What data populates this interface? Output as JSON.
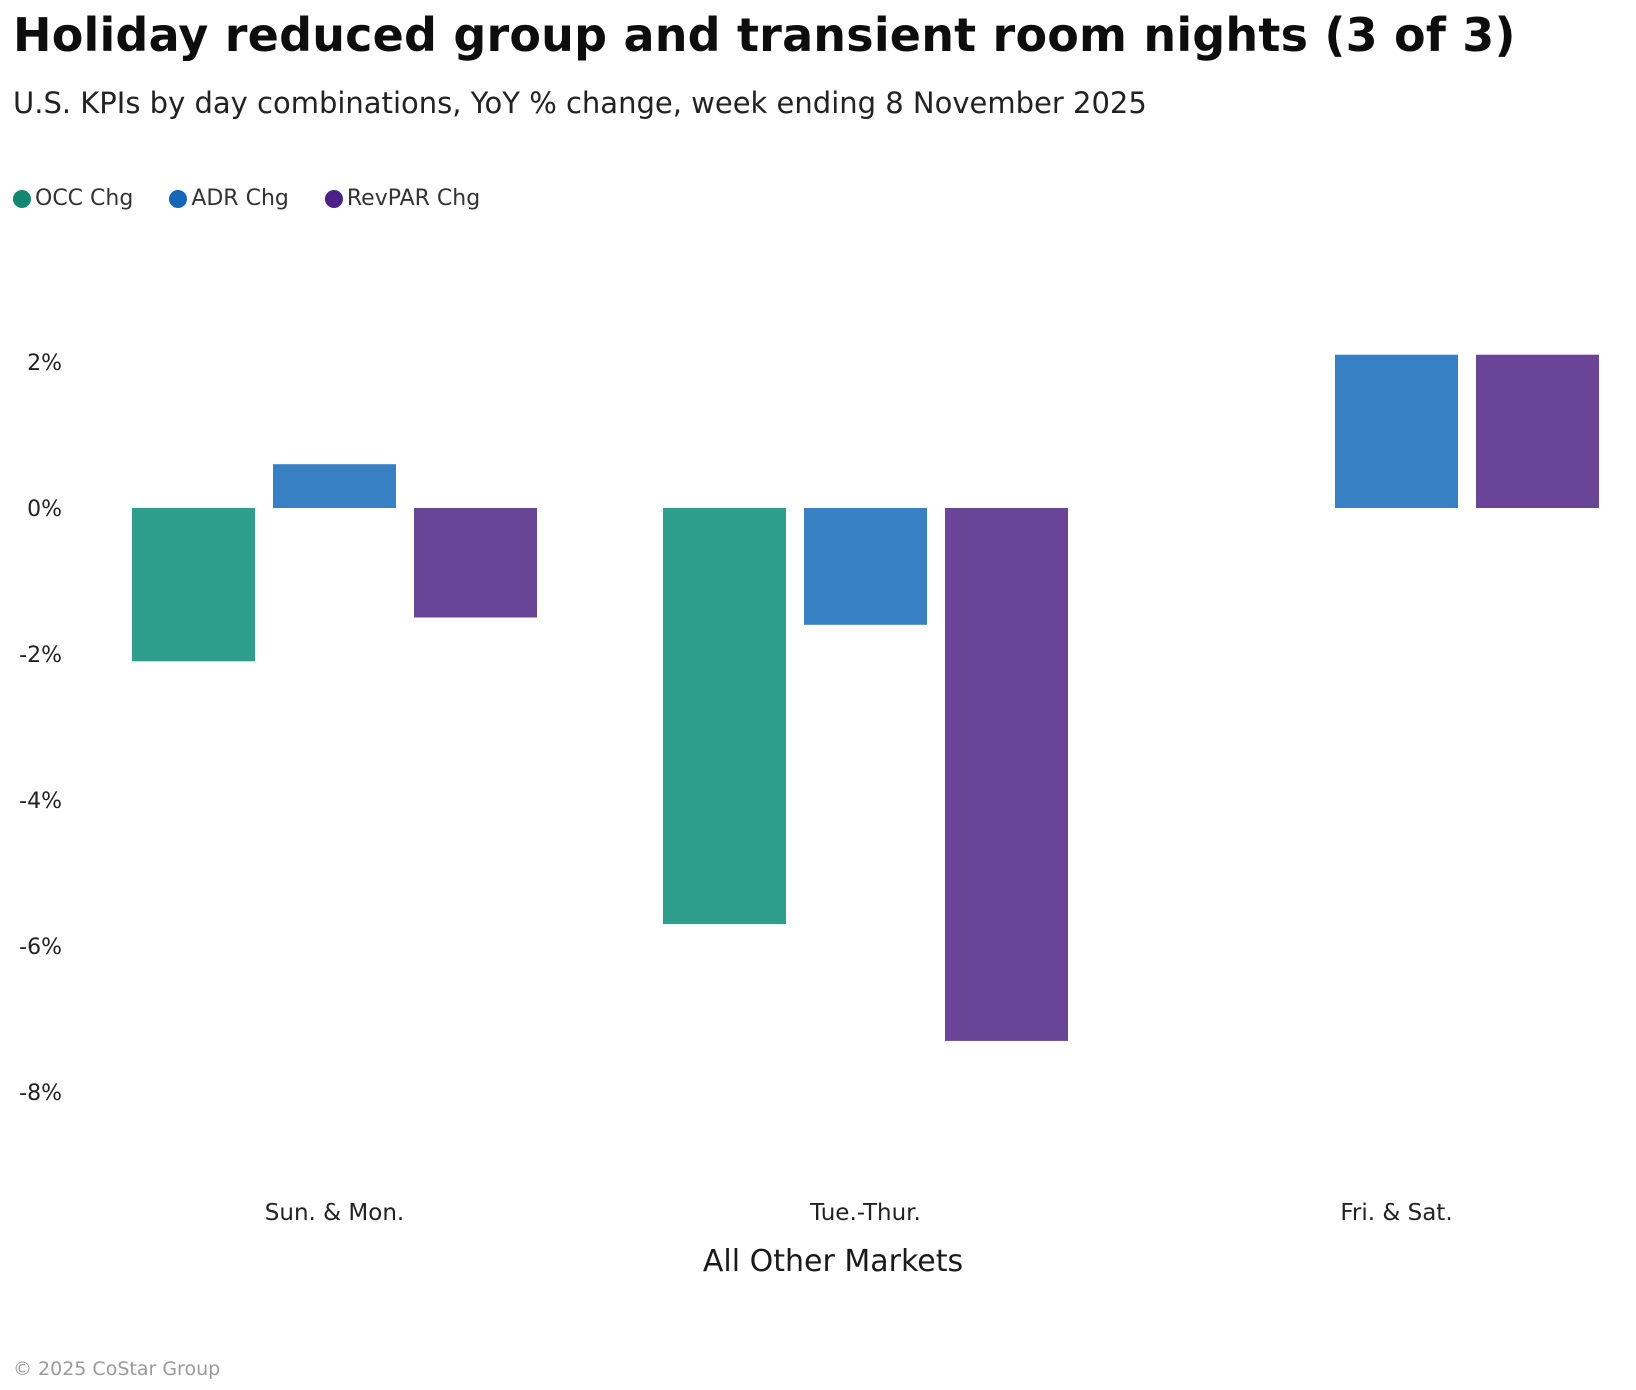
{
  "chart_data": {
    "type": "bar",
    "title": "Holiday reduced group and transient room nights (3 of 3)",
    "subtitle": "U.S. KPIs by day combinations, YoY % change, week ending 8 November 2025",
    "xlabel": "All Other Markets",
    "ylabel": "",
    "categories": [
      "Sun. & Mon.",
      "Tue.-Thur.",
      "Fri. & Sat."
    ],
    "series": [
      {
        "name": "OCC Chg",
        "color": "#2E9E8C",
        "legend_color": "#138673",
        "values": [
          -2.1,
          -5.7,
          0.0
        ]
      },
      {
        "name": "ADR Chg",
        "color": "#3780C4",
        "legend_color": "#1565B8",
        "values": [
          0.6,
          -1.6,
          2.1
        ]
      },
      {
        "name": "RevPAR Chg",
        "color": "#6A4496",
        "legend_color": "#4B2187",
        "values": [
          -1.5,
          -7.3,
          2.1
        ]
      }
    ],
    "yticks": [
      2,
      0,
      -2,
      -4,
      -6,
      -8
    ],
    "ytick_labels": [
      "2%",
      "0%",
      "-2%",
      "-4%",
      "-6%",
      "-8%"
    ],
    "ylim": [
      -9,
      3
    ],
    "grid": false,
    "legend_position": "top-left"
  },
  "footer": {
    "copyright": "© 2025 CoStar Group"
  }
}
